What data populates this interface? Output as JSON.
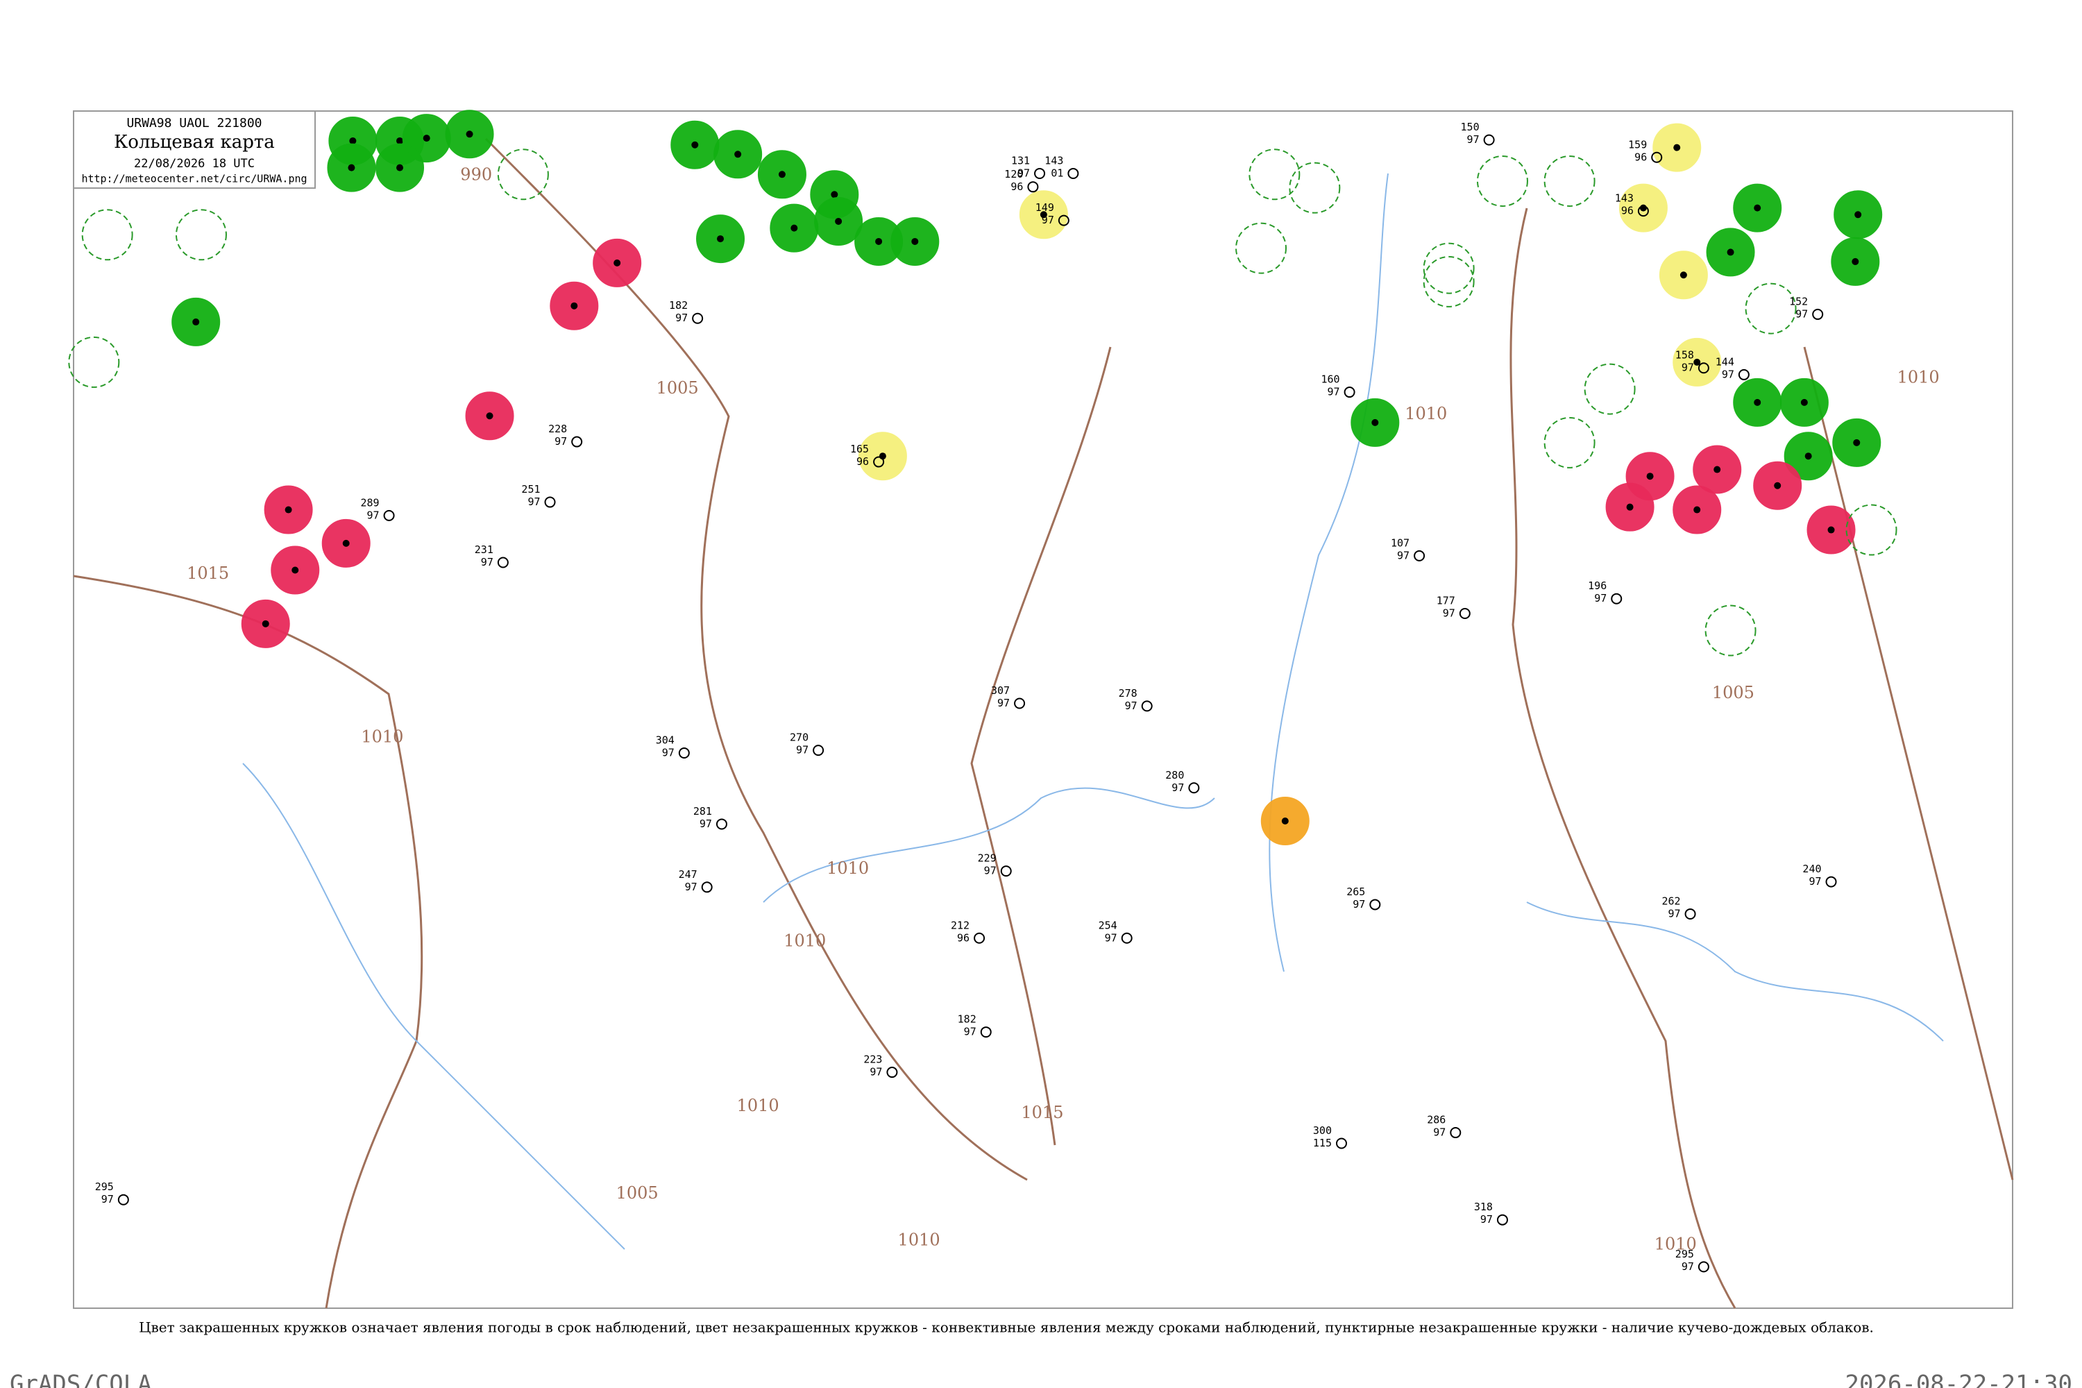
{
  "header": {
    "code": "URWA98  UAOL  221800",
    "title": "Кольцевая карта",
    "datetime": "22/08/2026 18 UTC",
    "url": "http://meteocenter.net/circ/URWA.png"
  },
  "isobars": [
    "990",
    "1015",
    "1010",
    "1005",
    "1010",
    "1010",
    "1010",
    "1015",
    "1005",
    "1010",
    "1010",
    "1005",
    "1010",
    "1010"
  ],
  "stations": [
    {
      "p": "131",
      "c": "97"
    },
    {
      "p": "143",
      "c": "01"
    },
    {
      "p": "165",
      "c": "96"
    },
    {
      "p": "158",
      "c": "97"
    },
    {
      "p": "120",
      "c": "96"
    },
    {
      "p": "149",
      "c": "97"
    },
    {
      "p": "182",
      "c": "97"
    },
    {
      "p": "228",
      "c": "97"
    },
    {
      "p": "251",
      "c": "97"
    },
    {
      "p": "289",
      "c": "97"
    },
    {
      "p": "231",
      "c": "97"
    },
    {
      "p": "304",
      "c": "97"
    },
    {
      "p": "281",
      "c": "97"
    },
    {
      "p": "229",
      "c": "97"
    },
    {
      "p": "270",
      "c": "97"
    },
    {
      "p": "247",
      "c": "97"
    },
    {
      "p": "212",
      "c": "96"
    },
    {
      "p": "223",
      "c": "97"
    },
    {
      "p": "182",
      "c": "97"
    },
    {
      "p": "307",
      "c": "97"
    },
    {
      "p": "278",
      "c": "97"
    },
    {
      "p": "280",
      "c": "97"
    },
    {
      "p": "254",
      "c": "97"
    },
    {
      "p": "265",
      "c": "97"
    },
    {
      "p": "286",
      "c": "97"
    },
    {
      "p": "300",
      "c": "115"
    },
    {
      "p": "318",
      "c": "97"
    },
    {
      "p": "295",
      "c": "97"
    },
    {
      "p": "240",
      "c": "97"
    },
    {
      "p": "262",
      "c": "97"
    },
    {
      "p": "196",
      "c": "97"
    },
    {
      "p": "107",
      "c": "97"
    },
    {
      "p": "177",
      "c": "97"
    },
    {
      "p": "160",
      "c": "97"
    },
    {
      "p": "150",
      "c": "97"
    },
    {
      "p": "143",
      "c": "96"
    },
    {
      "p": "159",
      "c": "96"
    },
    {
      "p": "152",
      "c": "97"
    },
    {
      "p": "144",
      "c": "97"
    },
    {
      "p": "295",
      "c": "97"
    }
  ],
  "caption": "Цвет закрашенных кружков означает явления погоды в срок наблюдений, цвет незакрашенных кружков - конвективные явления между сроками наблюдений, пунктирные незакрашенные кружки - наличие кучево-дождевых облаков.",
  "footer": {
    "left": "GrADS/COLA",
    "right": "2026-08-22-21:30"
  }
}
